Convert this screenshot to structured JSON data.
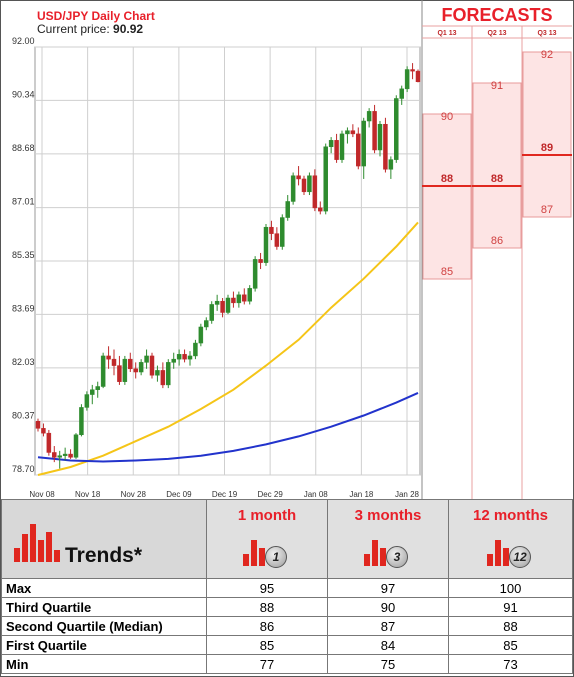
{
  "header": {
    "title": "USD/JPY Daily Chart",
    "price_label": "Current price:",
    "price_value": "90.92"
  },
  "forecasts": {
    "title": "FORECASTS",
    "columns": [
      {
        "label": "Q1 13",
        "values": [
          90,
          88,
          85
        ],
        "highlight": 88
      },
      {
        "label": "Q2 13",
        "values": [
          91,
          88,
          86
        ],
        "highlight": 88
      },
      {
        "label": "Q3 13",
        "values": [
          92,
          89,
          87
        ],
        "highlight": 89
      }
    ]
  },
  "chart_data": {
    "type": "candlestick",
    "y_ticks": [
      "92.00",
      "90.34",
      "88.68",
      "87.01",
      "85.35",
      "83.69",
      "82.03",
      "80.37",
      "78.70"
    ],
    "x_ticks": [
      "Nov 08",
      "Nov 18",
      "Nov 28",
      "Dec 09",
      "Dec 19",
      "Dec 29",
      "Jan 08",
      "Jan 18",
      "Jan 28"
    ],
    "ylim": [
      78.7,
      92.0
    ],
    "colors": {
      "up": "#2e8b2e",
      "down": "#c0282a",
      "ma_short": "#f5c518",
      "ma_long": "#2233cc",
      "grid": "#cfcfcf"
    },
    "candles": [
      {
        "o": 80.37,
        "h": 80.45,
        "l": 80.05,
        "c": 80.15
      },
      {
        "o": 80.15,
        "h": 80.3,
        "l": 79.9,
        "c": 80.0
      },
      {
        "o": 80.0,
        "h": 80.1,
        "l": 79.3,
        "c": 79.4
      },
      {
        "o": 79.4,
        "h": 79.6,
        "l": 79.1,
        "c": 79.25
      },
      {
        "o": 79.25,
        "h": 79.45,
        "l": 78.9,
        "c": 79.3
      },
      {
        "o": 79.3,
        "h": 79.55,
        "l": 79.15,
        "c": 79.35
      },
      {
        "o": 79.35,
        "h": 79.5,
        "l": 79.2,
        "c": 79.25
      },
      {
        "o": 79.25,
        "h": 80.0,
        "l": 79.2,
        "c": 79.95
      },
      {
        "o": 79.95,
        "h": 80.9,
        "l": 79.9,
        "c": 80.8
      },
      {
        "o": 80.8,
        "h": 81.3,
        "l": 80.7,
        "c": 81.2
      },
      {
        "o": 81.2,
        "h": 81.5,
        "l": 80.9,
        "c": 81.35
      },
      {
        "o": 81.35,
        "h": 81.6,
        "l": 81.1,
        "c": 81.45
      },
      {
        "o": 81.45,
        "h": 82.5,
        "l": 81.4,
        "c": 82.4
      },
      {
        "o": 82.4,
        "h": 82.7,
        "l": 82.0,
        "c": 82.3
      },
      {
        "o": 82.3,
        "h": 82.6,
        "l": 81.8,
        "c": 82.1
      },
      {
        "o": 82.1,
        "h": 82.4,
        "l": 81.5,
        "c": 81.6
      },
      {
        "o": 81.6,
        "h": 82.4,
        "l": 81.5,
        "c": 82.3
      },
      {
        "o": 82.3,
        "h": 82.5,
        "l": 81.9,
        "c": 82.0
      },
      {
        "o": 82.0,
        "h": 82.2,
        "l": 81.7,
        "c": 81.9
      },
      {
        "o": 81.9,
        "h": 82.3,
        "l": 81.8,
        "c": 82.2
      },
      {
        "o": 82.2,
        "h": 82.6,
        "l": 82.0,
        "c": 82.4
      },
      {
        "o": 82.4,
        "h": 82.5,
        "l": 81.7,
        "c": 81.8
      },
      {
        "o": 81.8,
        "h": 82.1,
        "l": 81.6,
        "c": 81.95
      },
      {
        "o": 81.95,
        "h": 82.2,
        "l": 81.4,
        "c": 81.5
      },
      {
        "o": 81.5,
        "h": 82.3,
        "l": 81.4,
        "c": 82.2
      },
      {
        "o": 82.2,
        "h": 82.5,
        "l": 82.0,
        "c": 82.3
      },
      {
        "o": 82.3,
        "h": 82.6,
        "l": 82.1,
        "c": 82.45
      },
      {
        "o": 82.45,
        "h": 82.6,
        "l": 82.2,
        "c": 82.3
      },
      {
        "o": 82.3,
        "h": 82.55,
        "l": 82.1,
        "c": 82.4
      },
      {
        "o": 82.4,
        "h": 82.9,
        "l": 82.3,
        "c": 82.8
      },
      {
        "o": 82.8,
        "h": 83.4,
        "l": 82.7,
        "c": 83.3
      },
      {
        "o": 83.3,
        "h": 83.6,
        "l": 83.2,
        "c": 83.5
      },
      {
        "o": 83.5,
        "h": 84.1,
        "l": 83.4,
        "c": 84.0
      },
      {
        "o": 84.0,
        "h": 84.3,
        "l": 83.8,
        "c": 84.1
      },
      {
        "o": 84.1,
        "h": 84.2,
        "l": 83.6,
        "c": 83.75
      },
      {
        "o": 83.75,
        "h": 84.3,
        "l": 83.7,
        "c": 84.2
      },
      {
        "o": 84.2,
        "h": 84.4,
        "l": 83.9,
        "c": 84.05
      },
      {
        "o": 84.05,
        "h": 84.4,
        "l": 83.9,
        "c": 84.3
      },
      {
        "o": 84.3,
        "h": 84.5,
        "l": 84.0,
        "c": 84.1
      },
      {
        "o": 84.1,
        "h": 84.6,
        "l": 84.0,
        "c": 84.5
      },
      {
        "o": 84.5,
        "h": 85.5,
        "l": 84.4,
        "c": 85.4
      },
      {
        "o": 85.4,
        "h": 85.6,
        "l": 85.1,
        "c": 85.3
      },
      {
        "o": 85.3,
        "h": 86.5,
        "l": 85.2,
        "c": 86.4
      },
      {
        "o": 86.4,
        "h": 86.6,
        "l": 86.0,
        "c": 86.2
      },
      {
        "o": 86.2,
        "h": 86.4,
        "l": 85.7,
        "c": 85.8
      },
      {
        "o": 85.8,
        "h": 86.8,
        "l": 85.7,
        "c": 86.7
      },
      {
        "o": 86.7,
        "h": 87.4,
        "l": 86.6,
        "c": 87.2
      },
      {
        "o": 87.2,
        "h": 88.1,
        "l": 87.1,
        "c": 88.0
      },
      {
        "o": 88.0,
        "h": 88.3,
        "l": 87.7,
        "c": 87.9
      },
      {
        "o": 87.9,
        "h": 88.0,
        "l": 87.4,
        "c": 87.5
      },
      {
        "o": 87.5,
        "h": 88.1,
        "l": 87.4,
        "c": 88.0
      },
      {
        "o": 88.0,
        "h": 88.2,
        "l": 86.9,
        "c": 87.0
      },
      {
        "o": 87.0,
        "h": 87.2,
        "l": 86.8,
        "c": 86.9
      },
      {
        "o": 86.9,
        "h": 89.0,
        "l": 86.8,
        "c": 88.9
      },
      {
        "o": 88.9,
        "h": 89.2,
        "l": 88.7,
        "c": 89.1
      },
      {
        "o": 89.1,
        "h": 89.3,
        "l": 88.4,
        "c": 88.5
      },
      {
        "o": 88.5,
        "h": 89.4,
        "l": 88.4,
        "c": 89.3
      },
      {
        "o": 89.3,
        "h": 89.5,
        "l": 89.0,
        "c": 89.4
      },
      {
        "o": 89.4,
        "h": 89.6,
        "l": 89.2,
        "c": 89.3
      },
      {
        "o": 89.3,
        "h": 89.5,
        "l": 88.2,
        "c": 88.3
      },
      {
        "o": 88.3,
        "h": 89.8,
        "l": 87.9,
        "c": 89.7
      },
      {
        "o": 89.7,
        "h": 90.1,
        "l": 89.5,
        "c": 90.0
      },
      {
        "o": 90.0,
        "h": 90.2,
        "l": 88.7,
        "c": 88.8
      },
      {
        "o": 88.8,
        "h": 89.7,
        "l": 88.6,
        "c": 89.6
      },
      {
        "o": 89.6,
        "h": 89.8,
        "l": 88.1,
        "c": 88.2
      },
      {
        "o": 88.2,
        "h": 88.6,
        "l": 87.9,
        "c": 88.5
      },
      {
        "o": 88.5,
        "h": 90.5,
        "l": 88.4,
        "c": 90.4
      },
      {
        "o": 90.4,
        "h": 90.8,
        "l": 90.2,
        "c": 90.7
      },
      {
        "o": 90.7,
        "h": 91.4,
        "l": 90.6,
        "c": 91.3
      },
      {
        "o": 91.3,
        "h": 91.5,
        "l": 91.0,
        "c": 91.25
      },
      {
        "o": 91.25,
        "h": 91.3,
        "l": 90.9,
        "c": 90.92
      }
    ],
    "ma_short": [
      [
        0,
        78.7
      ],
      [
        6,
        78.95
      ],
      [
        12,
        79.3
      ],
      [
        18,
        79.75
      ],
      [
        24,
        80.2
      ],
      [
        30,
        80.75
      ],
      [
        36,
        81.35
      ],
      [
        42,
        82.1
      ],
      [
        48,
        82.9
      ],
      [
        54,
        83.9
      ],
      [
        60,
        84.8
      ],
      [
        66,
        85.8
      ],
      [
        70,
        86.55
      ]
    ],
    "ma_long": [
      [
        0,
        79.25
      ],
      [
        6,
        79.15
      ],
      [
        12,
        79.12
      ],
      [
        18,
        79.15
      ],
      [
        24,
        79.2
      ],
      [
        30,
        79.3
      ],
      [
        36,
        79.45
      ],
      [
        42,
        79.65
      ],
      [
        48,
        79.9
      ],
      [
        54,
        80.2
      ],
      [
        60,
        80.55
      ],
      [
        66,
        80.95
      ],
      [
        70,
        81.25
      ]
    ]
  },
  "trends": {
    "title": "Trends*",
    "columns": [
      {
        "title": "1 month",
        "badge": "1"
      },
      {
        "title": "3 months",
        "badge": "3"
      },
      {
        "title": "12 months",
        "badge": "12"
      }
    ],
    "rows": [
      {
        "label": "Max",
        "values": [
          "95",
          "97",
          "100"
        ]
      },
      {
        "label": "Third Quartile",
        "values": [
          "88",
          "90",
          "91"
        ]
      },
      {
        "label": "Second Quartile (Median)",
        "values": [
          "86",
          "87",
          "88"
        ]
      },
      {
        "label": "First Quartile",
        "values": [
          "85",
          "84",
          "85"
        ]
      },
      {
        "label": "Min",
        "values": [
          "77",
          "75",
          "73"
        ]
      }
    ]
  }
}
